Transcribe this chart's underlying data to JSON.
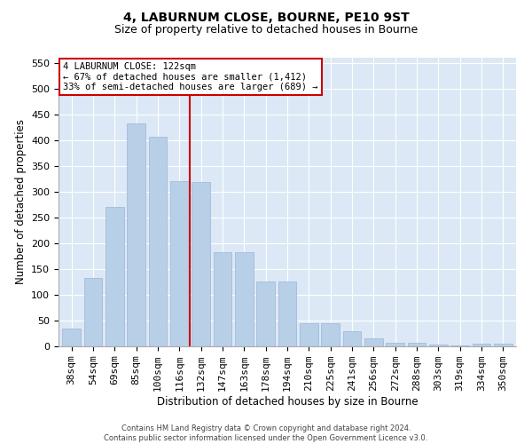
{
  "title": "4, LABURNUM CLOSE, BOURNE, PE10 9ST",
  "subtitle": "Size of property relative to detached houses in Bourne",
  "xlabel": "Distribution of detached houses by size in Bourne",
  "ylabel": "Number of detached properties",
  "categories": [
    "38sqm",
    "54sqm",
    "69sqm",
    "85sqm",
    "100sqm",
    "116sqm",
    "132sqm",
    "147sqm",
    "163sqm",
    "178sqm",
    "194sqm",
    "210sqm",
    "225sqm",
    "241sqm",
    "256sqm",
    "272sqm",
    "288sqm",
    "303sqm",
    "319sqm",
    "334sqm",
    "350sqm"
  ],
  "values": [
    35,
    133,
    270,
    432,
    407,
    320,
    318,
    182,
    182,
    125,
    125,
    44,
    44,
    30,
    16,
    7,
    7,
    3,
    2,
    5,
    5
  ],
  "bar_color": "#b8cfe8",
  "bar_edge_color": "#9ab5d8",
  "vline_color": "#cc0000",
  "annotation_text": "4 LABURNUM CLOSE: 122sqm\n← 67% of detached houses are smaller (1,412)\n33% of semi-detached houses are larger (689) →",
  "annotation_box_color": "#ffffff",
  "annotation_box_edge": "#cc0000",
  "ylim": [
    0,
    560
  ],
  "yticks": [
    0,
    50,
    100,
    150,
    200,
    250,
    300,
    350,
    400,
    450,
    500,
    550
  ],
  "background_color": "#dce8f5",
  "grid_color": "#ffffff",
  "footer_text": "Contains HM Land Registry data © Crown copyright and database right 2024.\nContains public sector information licensed under the Open Government Licence v3.0.",
  "title_fontsize": 10,
  "subtitle_fontsize": 9,
  "xlabel_fontsize": 8.5,
  "ylabel_fontsize": 8.5,
  "tick_fontsize": 8,
  "annotation_fontsize": 7.5,
  "footer_fontsize": 6
}
